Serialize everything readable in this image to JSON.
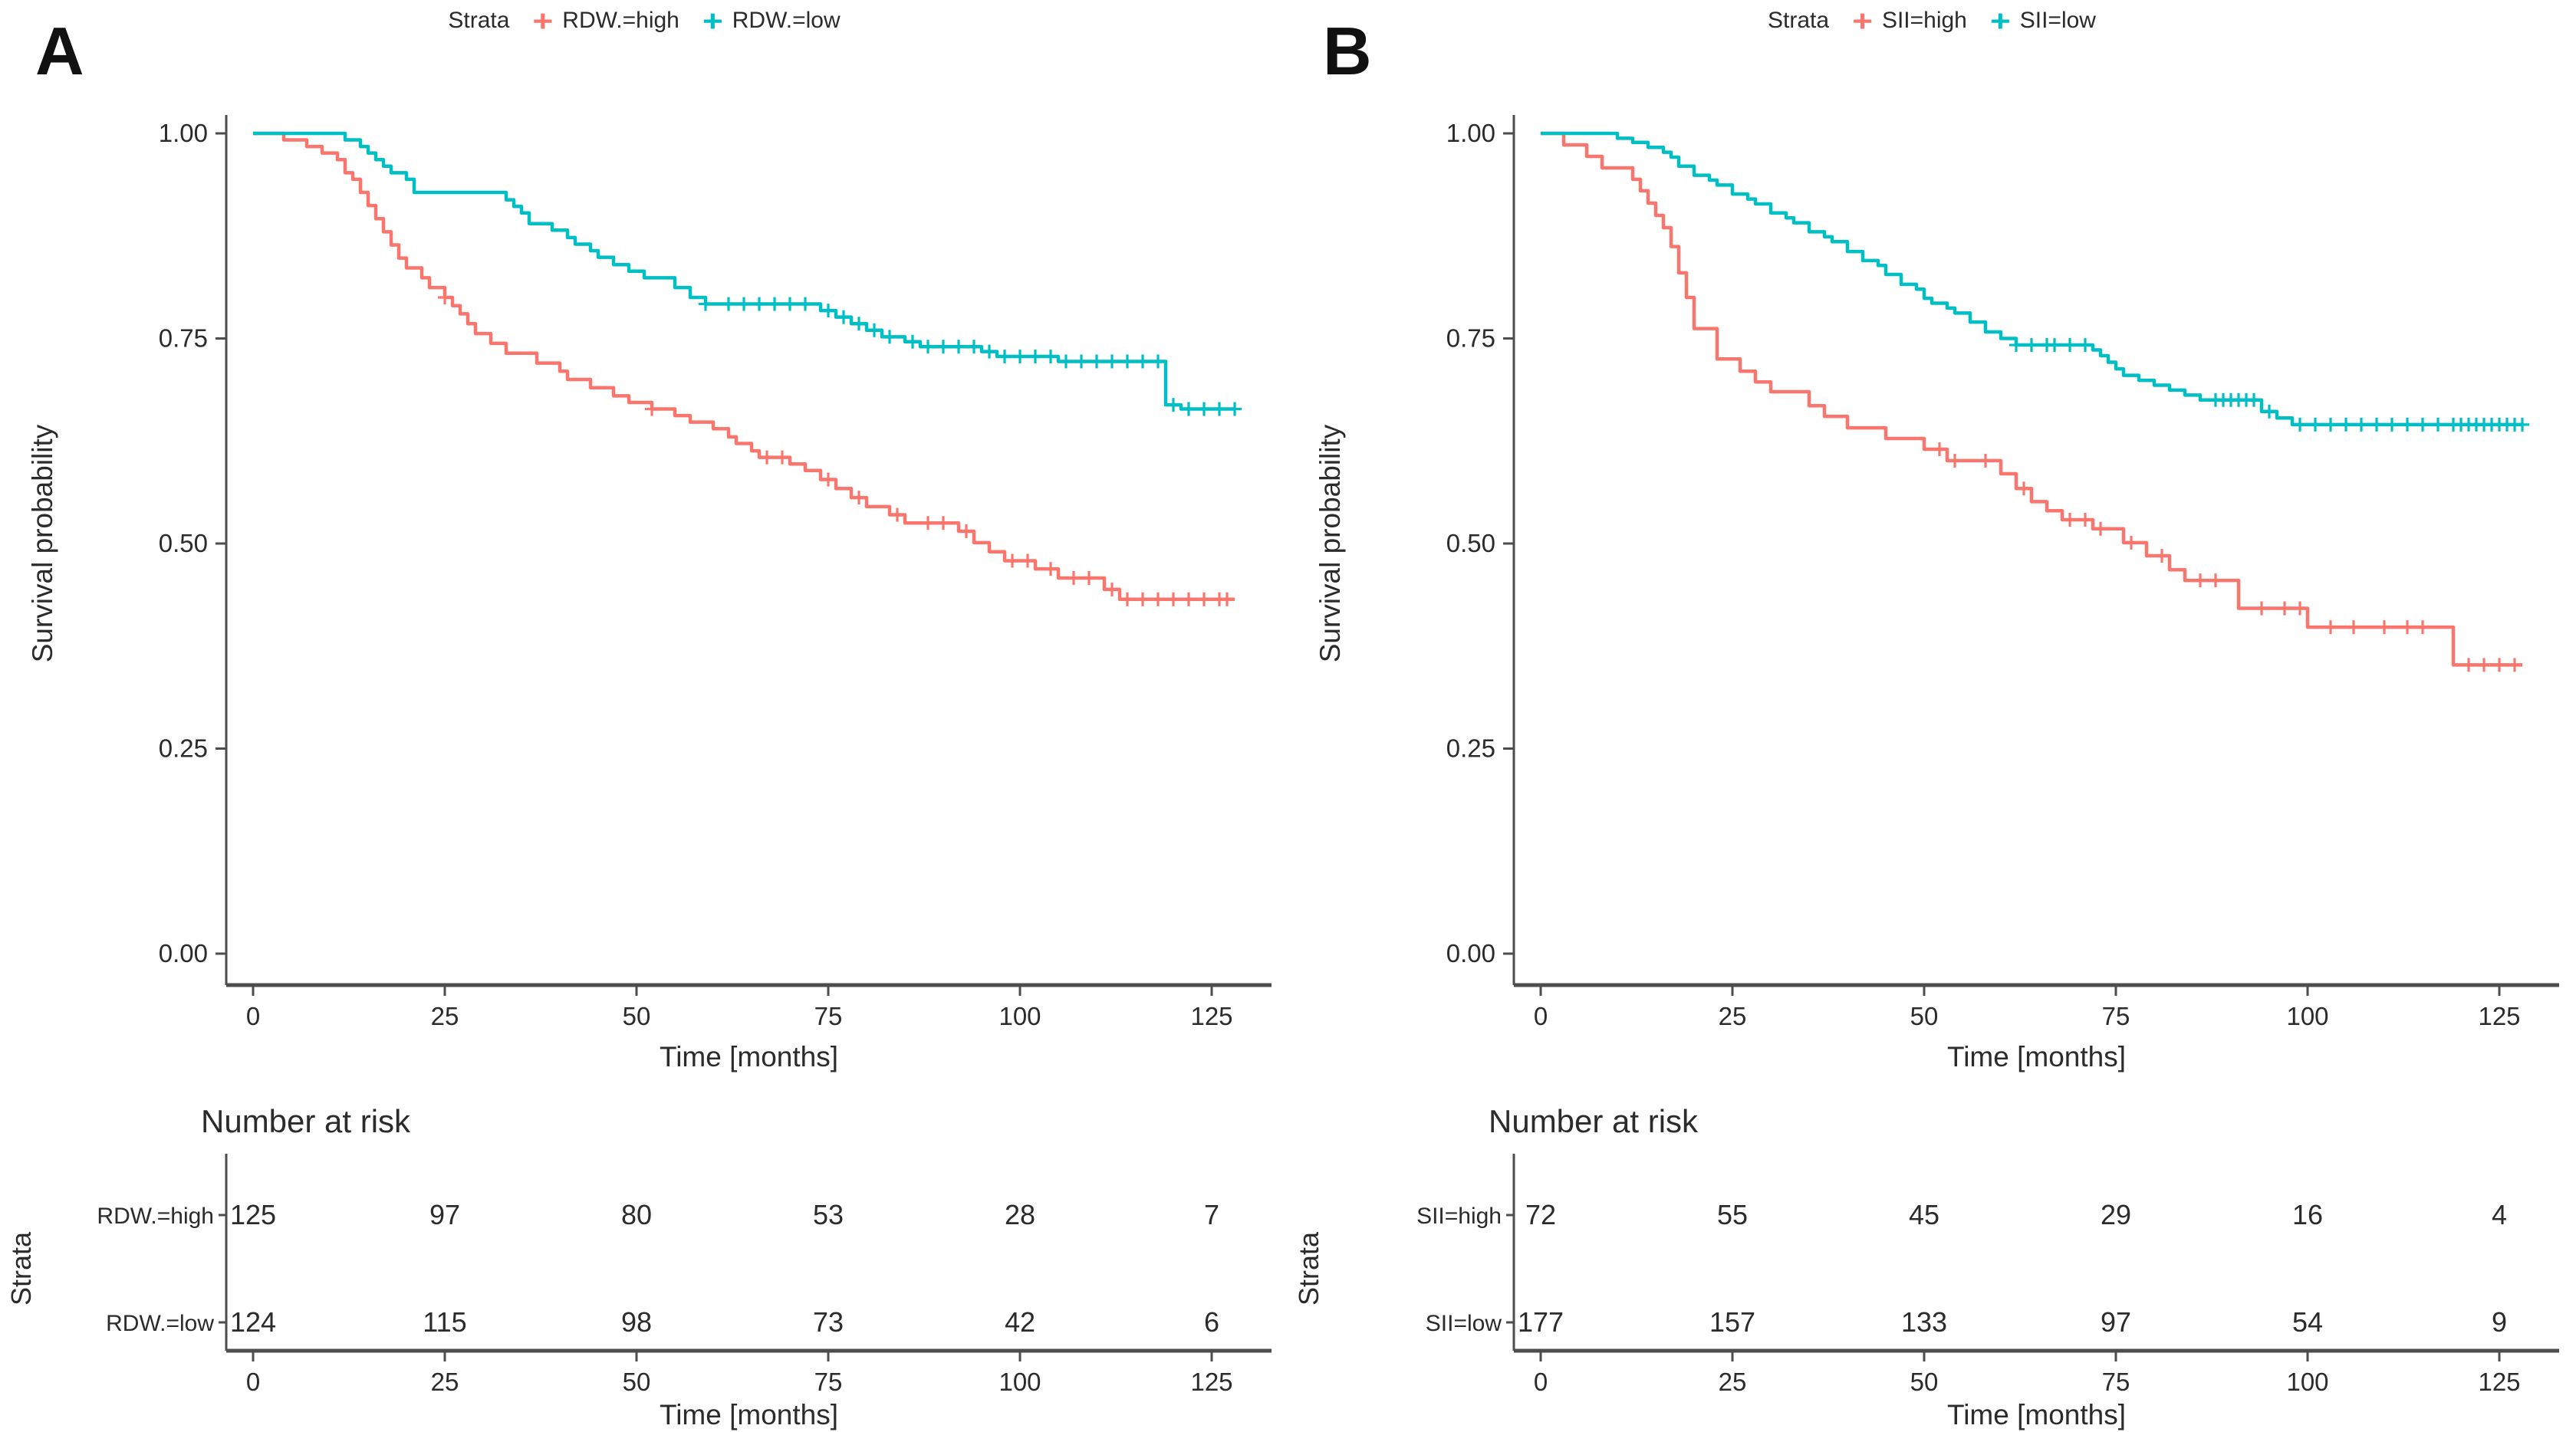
{
  "panels": [
    {
      "letter": "A",
      "legend_title": "Strata",
      "groups": [
        {
          "label": "RDW.=high",
          "color": "#F8766D"
        },
        {
          "label": "RDW.=low",
          "color": "#00BFC4"
        }
      ],
      "ylabel": "Survival probability",
      "xlabel": "Time  [months]"
    },
    {
      "letter": "B",
      "legend_title": "Strata",
      "groups": [
        {
          "label": "SII=high",
          "color": "#F8766D"
        },
        {
          "label": "SII=low",
          "color": "#00BFC4"
        }
      ],
      "ylabel": "Survival probability",
      "xlabel": "Time  [months]"
    }
  ],
  "chart_data": [
    {
      "type": "line",
      "subtype": "kaplan-meier-step",
      "title": "",
      "xlabel": "Time  [months]",
      "ylabel": "Survival probability",
      "xlim": [
        0,
        128
      ],
      "ylim": [
        0,
        1.0
      ],
      "x_ticks": [
        0,
        25,
        50,
        75,
        100,
        125
      ],
      "y_ticks": [
        "1.00",
        "0.75",
        "0.50",
        "0.25",
        "0.00"
      ],
      "grid": false,
      "legend_position": "top",
      "series": [
        {
          "name": "RDW.=high",
          "color": "#F8766D",
          "steps": [
            [
              0,
              1
            ],
            [
              4,
              0.992
            ],
            [
              7,
              0.984
            ],
            [
              9,
              0.976
            ],
            [
              11,
              0.968
            ],
            [
              12,
              0.952
            ],
            [
              13,
              0.944
            ],
            [
              14,
              0.928
            ],
            [
              15,
              0.912
            ],
            [
              16,
              0.896
            ],
            [
              17,
              0.88
            ],
            [
              18,
              0.864
            ],
            [
              19,
              0.848
            ],
            [
              20,
              0.836
            ],
            [
              22,
              0.824
            ],
            [
              23,
              0.812
            ],
            [
              25,
              0.8
            ],
            [
              26,
              0.79
            ],
            [
              27,
              0.78
            ],
            [
              28,
              0.768
            ],
            [
              29,
              0.756
            ],
            [
              31,
              0.744
            ],
            [
              33,
              0.732
            ],
            [
              37,
              0.72
            ],
            [
              40,
              0.71
            ],
            [
              41,
              0.7
            ],
            [
              44,
              0.69
            ],
            [
              47,
              0.68
            ],
            [
              49,
              0.672
            ],
            [
              52,
              0.664
            ],
            [
              55,
              0.656
            ],
            [
              57,
              0.648
            ],
            [
              60,
              0.64
            ],
            [
              62,
              0.63
            ],
            [
              63,
              0.622
            ],
            [
              65,
              0.613
            ],
            [
              66,
              0.605
            ],
            [
              70,
              0.597
            ],
            [
              72,
              0.589
            ],
            [
              74,
              0.578
            ],
            [
              76,
              0.567
            ],
            [
              78,
              0.556
            ],
            [
              80,
              0.545
            ],
            [
              83,
              0.535
            ],
            [
              85,
              0.525
            ],
            [
              92,
              0.515
            ],
            [
              94,
              0.501
            ],
            [
              96,
              0.49
            ],
            [
              98,
              0.479
            ],
            [
              102,
              0.469
            ],
            [
              105,
              0.458
            ],
            [
              111,
              0.444
            ],
            [
              113,
              0.432
            ],
            [
              128,
              0.432
            ]
          ],
          "censor_times": [
            25,
            52,
            67,
            69,
            75,
            79,
            84,
            88,
            90,
            93,
            99,
            101,
            104,
            107,
            109,
            112,
            114,
            116,
            118,
            120,
            122,
            124,
            126,
            127
          ]
        },
        {
          "name": "RDW.=low",
          "color": "#00BFC4",
          "steps": [
            [
              0,
              1
            ],
            [
              12,
              0.992
            ],
            [
              14,
              0.984
            ],
            [
              15,
              0.976
            ],
            [
              16,
              0.968
            ],
            [
              17,
              0.96
            ],
            [
              18,
              0.952
            ],
            [
              20,
              0.944
            ],
            [
              21,
              0.928
            ],
            [
              33,
              0.919
            ],
            [
              34,
              0.911
            ],
            [
              35,
              0.903
            ],
            [
              36,
              0.89
            ],
            [
              39,
              0.882
            ],
            [
              41,
              0.873
            ],
            [
              42,
              0.865
            ],
            [
              44,
              0.857
            ],
            [
              45,
              0.849
            ],
            [
              47,
              0.84
            ],
            [
              49,
              0.832
            ],
            [
              51,
              0.824
            ],
            [
              55,
              0.812
            ],
            [
              57,
              0.8
            ],
            [
              59,
              0.792
            ],
            [
              74,
              0.784
            ],
            [
              76,
              0.776
            ],
            [
              78,
              0.768
            ],
            [
              80,
              0.76
            ],
            [
              82,
              0.752
            ],
            [
              85,
              0.746
            ],
            [
              87,
              0.74
            ],
            [
              95,
              0.734
            ],
            [
              97,
              0.728
            ],
            [
              105,
              0.722
            ],
            [
              119,
              0.669
            ],
            [
              121,
              0.664
            ],
            [
              128,
              0.664
            ]
          ],
          "censor_times": [
            59,
            62,
            64,
            66,
            68,
            70,
            72,
            75,
            77,
            79,
            81,
            83,
            86,
            88,
            90,
            92,
            94,
            96,
            98,
            100,
            102,
            104,
            106,
            108,
            110,
            112,
            114,
            116,
            118,
            120,
            122,
            124,
            126,
            128
          ]
        }
      ],
      "risk_table": {
        "title": "Number at risk",
        "axis_label": "Strata",
        "time_points": [
          0,
          25,
          50,
          75,
          100,
          125
        ],
        "rows": [
          {
            "label": "RDW.=high",
            "color": "#F8766D",
            "counts": [
              125,
              97,
              80,
              53,
              28,
              7
            ]
          },
          {
            "label": "RDW.=low",
            "color": "#00BFC4",
            "counts": [
              124,
              115,
              98,
              73,
              42,
              6
            ]
          }
        ],
        "xlabel": "Time  [months]"
      }
    },
    {
      "type": "line",
      "subtype": "kaplan-meier-step",
      "title": "",
      "xlabel": "Time  [months]",
      "ylabel": "Survival probability",
      "xlim": [
        0,
        128
      ],
      "ylim": [
        0,
        1.0
      ],
      "x_ticks": [
        0,
        25,
        50,
        75,
        100,
        125
      ],
      "y_ticks": [
        "1.00",
        "0.75",
        "0.50",
        "0.25",
        "0.00"
      ],
      "grid": false,
      "legend_position": "top",
      "series": [
        {
          "name": "SII=high",
          "color": "#F8766D",
          "steps": [
            [
              0,
              1
            ],
            [
              3,
              0.986
            ],
            [
              6,
              0.972
            ],
            [
              8,
              0.958
            ],
            [
              12,
              0.944
            ],
            [
              13,
              0.93
            ],
            [
              14,
              0.915
            ],
            [
              15,
              0.9
            ],
            [
              16,
              0.885
            ],
            [
              17,
              0.862
            ],
            [
              18,
              0.83
            ],
            [
              19,
              0.8
            ],
            [
              20,
              0.762
            ],
            [
              23,
              0.725
            ],
            [
              26,
              0.71
            ],
            [
              28,
              0.697
            ],
            [
              30,
              0.685
            ],
            [
              35,
              0.668
            ],
            [
              37,
              0.655
            ],
            [
              40,
              0.641
            ],
            [
              45,
              0.628
            ],
            [
              50,
              0.615
            ],
            [
              53,
              0.601
            ],
            [
              60,
              0.585
            ],
            [
              62,
              0.567
            ],
            [
              64,
              0.551
            ],
            [
              66,
              0.54
            ],
            [
              68,
              0.529
            ],
            [
              72,
              0.518
            ],
            [
              76,
              0.501
            ],
            [
              79,
              0.485
            ],
            [
              82,
              0.468
            ],
            [
              84,
              0.455
            ],
            [
              91,
              0.421
            ],
            [
              100,
              0.398
            ],
            [
              119,
              0.352
            ],
            [
              128,
              0.352
            ]
          ],
          "censor_times": [
            52,
            54,
            58,
            63,
            69,
            71,
            73,
            77,
            81,
            86,
            88,
            94,
            97,
            99,
            103,
            106,
            110,
            113,
            115,
            121,
            123,
            125,
            127
          ]
        },
        {
          "name": "SII=low",
          "color": "#00BFC4",
          "steps": [
            [
              0,
              1
            ],
            [
              10,
              0.994
            ],
            [
              12,
              0.989
            ],
            [
              14,
              0.983
            ],
            [
              16,
              0.977
            ],
            [
              17,
              0.971
            ],
            [
              18,
              0.96
            ],
            [
              20,
              0.949
            ],
            [
              22,
              0.943
            ],
            [
              23,
              0.937
            ],
            [
              25,
              0.926
            ],
            [
              27,
              0.92
            ],
            [
              28,
              0.914
            ],
            [
              30,
              0.903
            ],
            [
              32,
              0.897
            ],
            [
              33,
              0.891
            ],
            [
              35,
              0.88
            ],
            [
              37,
              0.874
            ],
            [
              38,
              0.868
            ],
            [
              40,
              0.856
            ],
            [
              42,
              0.845
            ],
            [
              44,
              0.839
            ],
            [
              45,
              0.828
            ],
            [
              47,
              0.816
            ],
            [
              49,
              0.81
            ],
            [
              50,
              0.799
            ],
            [
              51,
              0.793
            ],
            [
              53,
              0.787
            ],
            [
              54,
              0.781
            ],
            [
              56,
              0.77
            ],
            [
              58,
              0.758
            ],
            [
              60,
              0.75
            ],
            [
              62,
              0.742
            ],
            [
              72,
              0.736
            ],
            [
              73,
              0.729
            ],
            [
              74,
              0.721
            ],
            [
              75,
              0.713
            ],
            [
              76,
              0.705
            ],
            [
              78,
              0.699
            ],
            [
              80,
              0.693
            ],
            [
              82,
              0.687
            ],
            [
              84,
              0.681
            ],
            [
              86,
              0.675
            ],
            [
              94,
              0.661
            ],
            [
              96,
              0.653
            ],
            [
              98,
              0.645
            ],
            [
              128,
              0.645
            ]
          ],
          "censor_times": [
            62,
            64,
            66,
            67,
            69,
            71,
            88,
            89,
            90,
            91,
            92,
            93,
            95,
            99,
            101,
            103,
            105,
            107,
            109,
            111,
            113,
            115,
            117,
            119,
            120,
            121,
            122,
            123,
            124,
            125,
            126,
            127,
            128
          ]
        }
      ],
      "risk_table": {
        "title": "Number at risk",
        "axis_label": "Strata",
        "time_points": [
          0,
          25,
          50,
          75,
          100,
          125
        ],
        "rows": [
          {
            "label": "SII=high",
            "color": "#F8766D",
            "counts": [
              72,
              55,
              45,
              29,
              16,
              4
            ]
          },
          {
            "label": "SII=low",
            "color": "#00BFC4",
            "counts": [
              177,
              157,
              133,
              97,
              54,
              9
            ]
          }
        ],
        "xlabel": "Time  [months]"
      }
    }
  ]
}
